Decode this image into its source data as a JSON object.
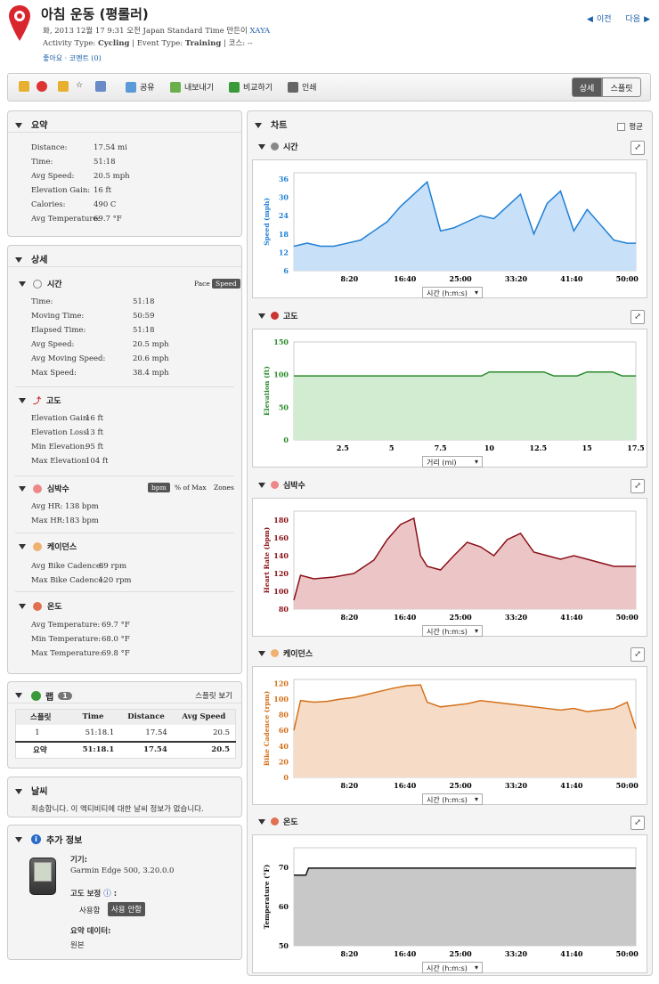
{
  "header": {
    "title": "아침 운동 (평롤러)",
    "date_line": "화, 2013 12월 17 9:31 오전 Japan Standard Time 만든이",
    "user": "XAYA",
    "activity_type_label": "Activity Type:",
    "activity_type": "Cycling",
    "event_type_label": "| Event Type:",
    "event_type": "Training",
    "course_label": "| 코스:",
    "course": "--",
    "like": "좋아요",
    "comments": "코멘트 (0)",
    "prev": "이전",
    "next": "다음"
  },
  "toolbar": {
    "share": "공유",
    "export": "내보내기",
    "compare": "비교하기",
    "print": "인쇄",
    "detail": "상세",
    "splits": "스플릿"
  },
  "summary": {
    "title": "요약",
    "rows": [
      [
        "Distance:",
        "17.54 mi"
      ],
      [
        "Time:",
        "51:18"
      ],
      [
        "Avg Speed:",
        "20.5 mph"
      ],
      [
        "Elevation Gain:",
        "16 ft"
      ],
      [
        "Calories:",
        "490 C"
      ],
      [
        "Avg Temperature:",
        "69.7 °F"
      ]
    ]
  },
  "details": {
    "title": "상세",
    "time": {
      "title": "시간",
      "pace": "Pace",
      "speed": "Speed",
      "rows": [
        [
          "Time:",
          "51:18"
        ],
        [
          "Moving Time:",
          "50:59"
        ],
        [
          "Elapsed Time:",
          "51:18"
        ],
        [
          "Avg Speed:",
          "20.5 mph"
        ],
        [
          "Avg Moving Speed:",
          "20.6 mph"
        ],
        [
          "Max Speed:",
          "38.4 mph"
        ]
      ]
    },
    "elevation": {
      "title": "고도",
      "rows": [
        [
          "Elevation Gain:",
          "16 ft"
        ],
        [
          "Elevation Loss:",
          "13 ft"
        ],
        [
          "Min Elevation:",
          "95 ft"
        ],
        [
          "Max Elevation:",
          "104 ft"
        ]
      ]
    },
    "hr": {
      "title": "심박수",
      "bpm": "bpm",
      "pmax": "% of Max",
      "zones": "Zones",
      "rows": [
        [
          "Avg HR:",
          "138 bpm"
        ],
        [
          "Max HR:",
          "183 bpm"
        ]
      ]
    },
    "cadence": {
      "title": "케이던스",
      "rows": [
        [
          "Avg Bike Cadence:",
          "89 rpm"
        ],
        [
          "Max Bike Cadence:",
          "120 rpm"
        ]
      ]
    },
    "temp": {
      "title": "온도",
      "rows": [
        [
          "Avg Temperature:",
          "69.7 °F"
        ],
        [
          "Min Temperature:",
          "68.0 °F"
        ],
        [
          "Max Temperature:",
          "69.8 °F"
        ]
      ]
    }
  },
  "laps": {
    "title": "랩",
    "count": "1",
    "split_view": "스플릿 보기",
    "headers": [
      "스플릿",
      "Time",
      "Distance",
      "Avg Speed"
    ],
    "rows": [
      [
        "1",
        "51:18.1",
        "17.54",
        "20.5"
      ]
    ],
    "total": [
      "요약",
      "51:18.1",
      "17.54",
      "20.5"
    ]
  },
  "weather": {
    "title": "날씨",
    "message": "죄송합니다. 이 액티비티에 대한 날씨 정보가 없습니다."
  },
  "extra": {
    "title": "추가 정보",
    "device_label": "기기:",
    "device": "Garmin Edge 500, 3.20.0.0",
    "elev_corr_label": "고도 보정",
    "use": "사용함",
    "no_use": "사용 안함",
    "summary_data_label": "요약 데이터:",
    "summary_data": "원본"
  },
  "charts_panel": {
    "title": "차트",
    "average": "평균"
  },
  "chart_data": [
    {
      "type": "area",
      "title": "시간",
      "ylabel": "Speed (mph)",
      "color": "#1f7fd4",
      "fill": "#c8e0f8",
      "ylim": [
        6,
        38
      ],
      "yticks": [
        "36",
        "30",
        "24",
        "18",
        "12",
        "6"
      ],
      "xticks": [
        "8:20",
        "16:40",
        "25:00",
        "33:20",
        "41:40",
        "50:00"
      ],
      "xselector": "시간 (h:m:s)",
      "x": [
        0,
        2,
        4,
        6,
        8,
        10,
        12,
        14,
        16,
        18,
        20,
        22,
        24,
        26,
        28,
        30,
        32,
        34,
        36,
        38,
        40,
        42,
        44,
        46,
        48,
        50,
        51.3
      ],
      "y": [
        14,
        15,
        14,
        14,
        15,
        16,
        19,
        22,
        27,
        31,
        35,
        19,
        20,
        22,
        24,
        23,
        27,
        31,
        18,
        28,
        32,
        19,
        26,
        21,
        16,
        15,
        15
      ]
    },
    {
      "type": "area",
      "title": "고도",
      "ylabel": "Elevation (ft)",
      "color": "#2a8a2a",
      "fill": "#d2ecd2",
      "ylim": [
        0,
        150
      ],
      "yticks": [
        "150",
        "100",
        "50",
        "0"
      ],
      "xticks": [
        "2.5",
        "5",
        "7.5",
        "10",
        "12.5",
        "15",
        "17.5"
      ],
      "xselector": "거리 (mi)",
      "x": [
        0,
        9.6,
        10,
        12.8,
        13.3,
        14.5,
        15,
        16.3,
        16.8,
        17.5
      ],
      "y": [
        98,
        98,
        104,
        104,
        98,
        98,
        104,
        104,
        98,
        98
      ]
    },
    {
      "type": "area",
      "title": "심박수",
      "ylabel": "Heart Rate (bpm)",
      "color": "#8b1018",
      "fill": "#ecc6c6",
      "ylim": [
        80,
        190
      ],
      "yticks": [
        "180",
        "160",
        "140",
        "120",
        "100",
        "80"
      ],
      "xticks": [
        "8:20",
        "16:40",
        "25:00",
        "33:20",
        "41:40",
        "50:00"
      ],
      "xselector": "시간 (h:m:s)",
      "x": [
        0,
        1,
        3,
        6,
        9,
        12,
        14,
        16,
        18,
        19,
        20,
        22,
        24,
        26,
        28,
        30,
        32,
        34,
        36,
        38,
        40,
        42,
        44,
        46,
        48,
        51.3
      ],
      "y": [
        90,
        118,
        114,
        116,
        120,
        135,
        158,
        175,
        182,
        140,
        128,
        124,
        140,
        155,
        150,
        140,
        158,
        165,
        144,
        140,
        136,
        140,
        136,
        132,
        128,
        128
      ]
    },
    {
      "type": "area",
      "title": "케이던스",
      "ylabel": "Bike Cadence (rpm)",
      "color": "#d4701a",
      "fill": "#f6dcc6",
      "ylim": [
        0,
        125
      ],
      "yticks": [
        "120",
        "100",
        "80",
        "60",
        "40",
        "20",
        "0"
      ],
      "xticks": [
        "8:20",
        "16:40",
        "25:00",
        "33:20",
        "41:40",
        "50:00"
      ],
      "xselector": "시간 (h:m:s)",
      "x": [
        0,
        1,
        3,
        5,
        7,
        9,
        11,
        13,
        15,
        17,
        19,
        20,
        22,
        24,
        26,
        28,
        30,
        32,
        34,
        36,
        38,
        40,
        42,
        44,
        46,
        48,
        50,
        51.3
      ],
      "y": [
        60,
        98,
        96,
        97,
        100,
        102,
        106,
        110,
        114,
        117,
        118,
        96,
        90,
        92,
        94,
        98,
        96,
        94,
        92,
        90,
        88,
        86,
        88,
        84,
        86,
        88,
        96,
        62
      ]
    },
    {
      "type": "area",
      "title": "온도",
      "ylabel": "Temperature (°F)",
      "color": "#111",
      "fill": "#c8c8c8",
      "ylim": [
        50,
        75
      ],
      "yticks": [
        "70",
        "60",
        "50"
      ],
      "xticks": [
        "8:20",
        "16:40",
        "25:00",
        "33:20",
        "41:40",
        "50:00"
      ],
      "xselector": "시간 (h:m:s)",
      "x": [
        0,
        1.8,
        2.2,
        51.3
      ],
      "y": [
        68,
        68,
        69.8,
        69.8
      ]
    }
  ]
}
